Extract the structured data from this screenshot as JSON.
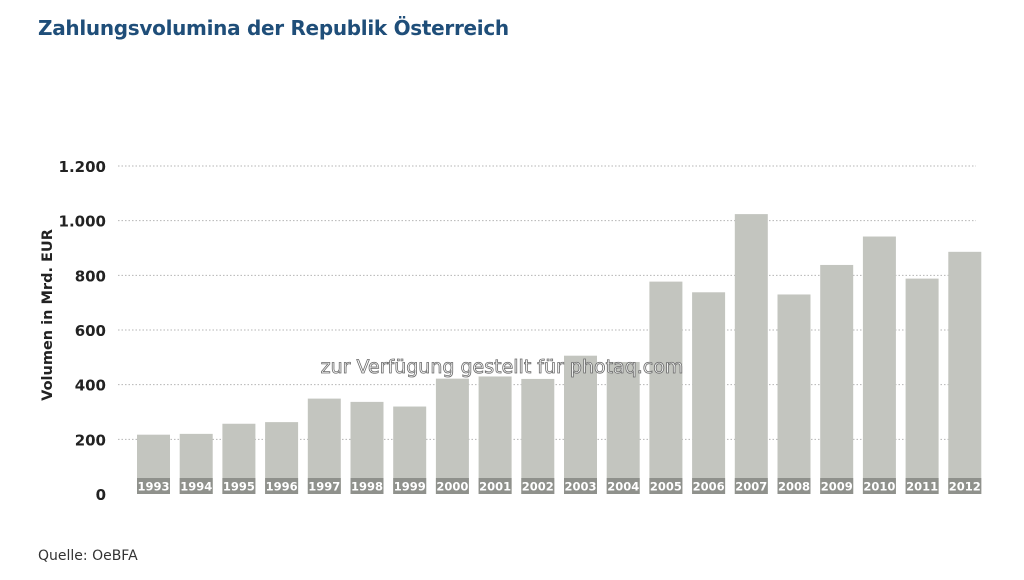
{
  "chart_data": {
    "type": "bar",
    "title": "Zahlungsvolumina der Republik Österreich",
    "xlabel": "",
    "ylabel": "Volumen in Mrd. EUR",
    "categories": [
      "1993",
      "1994",
      "1995",
      "1996",
      "1997",
      "1998",
      "1999",
      "2000",
      "2001",
      "2002",
      "2003",
      "2004",
      "2005",
      "2006",
      "2007",
      "2008",
      "2009",
      "2010",
      "2011",
      "2012"
    ],
    "values": [
      217,
      220,
      257,
      263,
      349,
      337,
      320,
      422,
      430,
      421,
      506,
      483,
      777,
      738,
      1024,
      730,
      838,
      942,
      788,
      886
    ],
    "ylim": [
      0,
      1200
    ],
    "yticks": [
      0,
      200,
      400,
      600,
      800,
      1000,
      1200
    ],
    "ytick_labels": [
      "0",
      "200",
      "400",
      "600",
      "800",
      "1.000",
      "1.200"
    ],
    "grid": true,
    "bar_color": "#c3c5bf",
    "label_band_color": "#8f918c",
    "source": "Quelle: OeBFA"
  },
  "watermark": "zur Verfügung gestellt für photaq.com"
}
